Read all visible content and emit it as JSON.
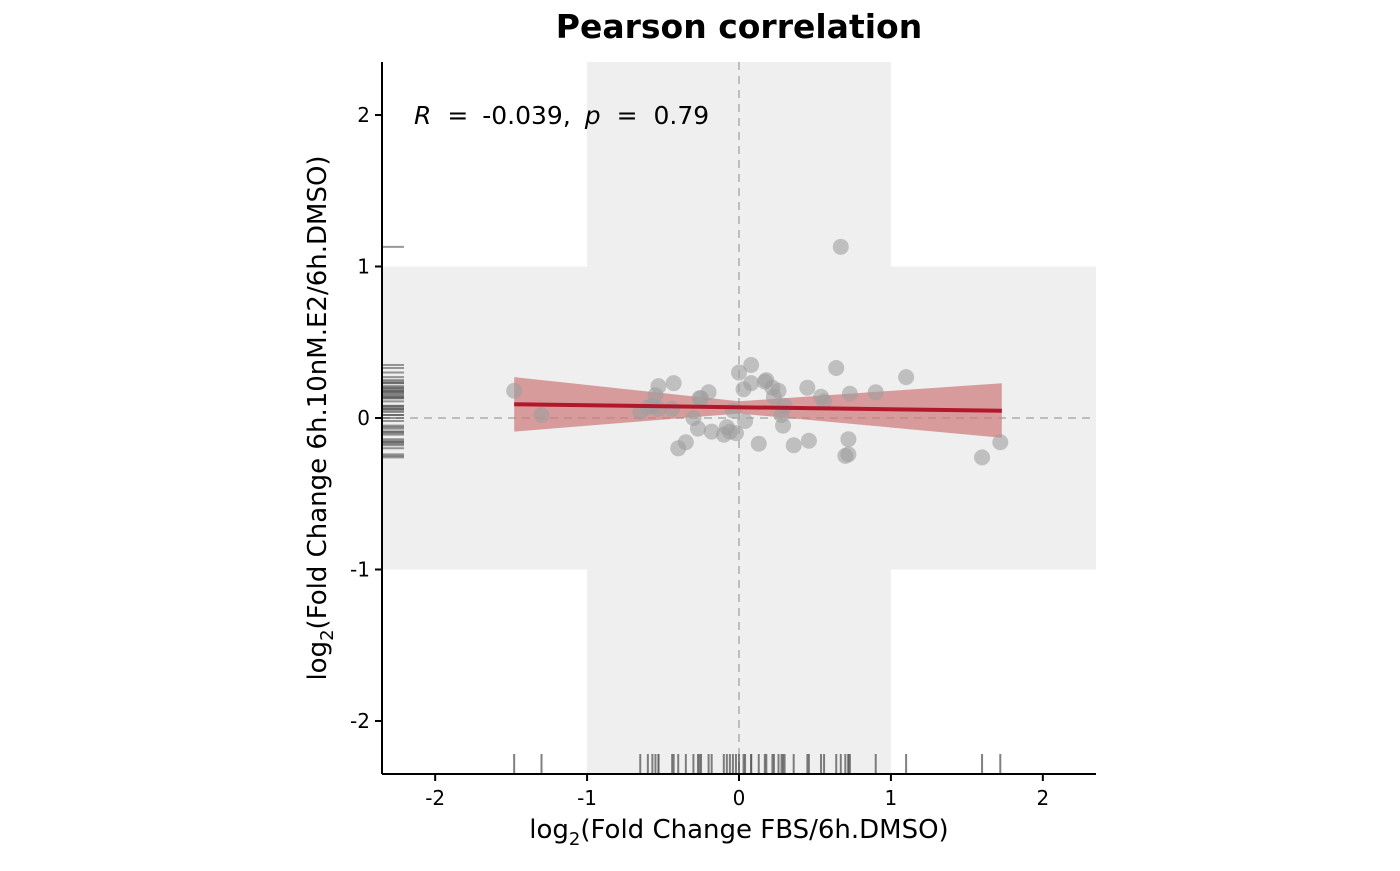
{
  "colors": {
    "background": "#ffffff",
    "band": "#efefef",
    "point": "#9e9e9e",
    "fit_line": "#b2182b",
    "fit_band": "#cd7777",
    "rug": "#555555",
    "zero_line": "#bdbdbd",
    "axis": "#000000"
  },
  "chart_data": {
    "type": "scatter",
    "title": "Pearson correlation",
    "xlabel_prefix": "log",
    "xlabel_sub": "2",
    "xlabel_rest": "(Fold Change FBS/6h.DMSO)",
    "ylabel_prefix": "log",
    "ylabel_sub": "2",
    "ylabel_rest": "(Fold Change 6h.10nM.E2/6h.DMSO)",
    "xlim": [
      -2.35,
      2.35
    ],
    "ylim": [
      -2.35,
      2.35
    ],
    "xticks": [
      -2,
      -1,
      0,
      1,
      2
    ],
    "yticks": [
      -2,
      -1,
      0,
      1,
      2
    ],
    "xtick_labels": [
      "-2",
      "-1",
      "0",
      "1",
      "2"
    ],
    "ytick_labels": [
      "-2",
      "-1",
      "0",
      "1",
      "2"
    ],
    "annotation": {
      "r_symbol": "R",
      "r_value": "-0.039",
      "p_symbol": "p",
      "p_value": "0.79",
      "equals": "=",
      "separator": ","
    },
    "fit": {
      "x_range": [
        -1.48,
        1.73
      ],
      "intercept": 0.071,
      "slope": -0.0135,
      "ci_left": [
        -0.09,
        0.27
      ],
      "ci_center": [
        0.03,
        0.11
      ],
      "ci_right": [
        -0.13,
        0.23
      ]
    },
    "points": {
      "x": [
        -1.48,
        -1.3,
        -0.65,
        -0.6,
        -0.55,
        -0.53,
        -0.53,
        -0.57,
        -0.44,
        -0.43,
        -0.4,
        -0.35,
        -0.3,
        -0.27,
        -0.26,
        -0.25,
        -0.2,
        -0.18,
        -0.1,
        -0.08,
        -0.06,
        -0.04,
        -0.02,
        0.0,
        0.03,
        0.04,
        0.08,
        0.08,
        0.13,
        0.17,
        0.18,
        0.22,
        0.23,
        0.26,
        0.28,
        0.29,
        0.3,
        0.36,
        0.45,
        0.46,
        0.54,
        0.56,
        0.64,
        0.67,
        0.7,
        0.72,
        0.72,
        0.73,
        0.9,
        1.1,
        1.6,
        1.72
      ],
      "y": [
        0.18,
        0.02,
        0.04,
        0.07,
        0.15,
        0.06,
        0.21,
        0.08,
        0.06,
        0.23,
        -0.2,
        -0.16,
        0.0,
        -0.07,
        0.13,
        0.13,
        0.17,
        -0.09,
        -0.11,
        -0.06,
        -0.09,
        0.05,
        -0.1,
        0.3,
        0.19,
        -0.02,
        0.35,
        0.23,
        -0.17,
        0.24,
        0.25,
        0.2,
        0.14,
        0.18,
        0.02,
        -0.05,
        0.08,
        -0.18,
        0.2,
        -0.15,
        0.14,
        0.11,
        0.33,
        1.13,
        -0.25,
        -0.24,
        -0.14,
        0.16,
        0.17,
        0.27,
        -0.26,
        -0.16
      ]
    }
  }
}
